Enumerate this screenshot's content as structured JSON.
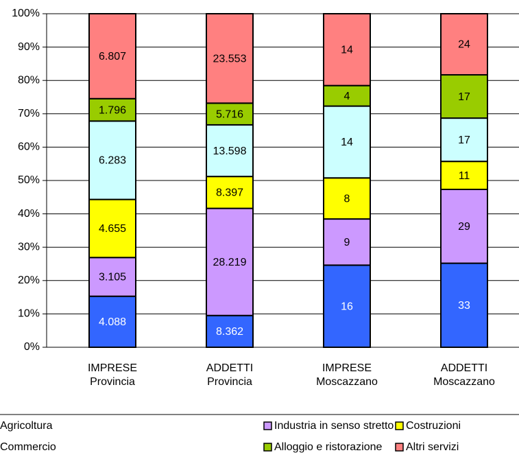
{
  "chart_data": {
    "type": "bar",
    "stacked_percent": true,
    "categories": [
      "IMPRESE Provincia",
      "ADDETTI Provincia",
      "IMPRESE Moscazzano",
      "ADDETTI Moscazzano"
    ],
    "series": [
      {
        "name": "Agricoltura",
        "color": "#3366ff",
        "values": [
          4088,
          8362,
          16,
          33
        ],
        "value_labels": [
          "4.088",
          "8.362",
          "16",
          "33"
        ]
      },
      {
        "name": "Industria in senso stretto",
        "color": "#cc99ff",
        "values": [
          3105,
          28219,
          9,
          29
        ],
        "value_labels": [
          "3.105",
          "28.219",
          "9",
          "29"
        ]
      },
      {
        "name": "Costruzioni",
        "color": "#ffff00",
        "values": [
          4655,
          8397,
          8,
          11
        ],
        "value_labels": [
          "4.655",
          "8.397",
          "8",
          "11"
        ]
      },
      {
        "name": "Commercio",
        "color": "#ccffff",
        "values": [
          6283,
          13598,
          14,
          17
        ],
        "value_labels": [
          "6.283",
          "13.598",
          "14",
          "17"
        ]
      },
      {
        "name": "Alloggio e ristorazione",
        "color": "#99cc00",
        "values": [
          1796,
          5716,
          4,
          17
        ],
        "value_labels": [
          "1.796",
          "5.716",
          "4",
          "17"
        ]
      },
      {
        "name": "Altri servizi",
        "color": "#ff8080",
        "values": [
          6807,
          23553,
          14,
          24
        ],
        "value_labels": [
          "6.807",
          "23.553",
          "14",
          "24"
        ]
      }
    ],
    "ylim": [
      0,
      100
    ],
    "yticks": [
      {
        "value": 0,
        "label": "0%"
      },
      {
        "value": 10,
        "label": "10%"
      },
      {
        "value": 20,
        "label": "20%"
      },
      {
        "value": 30,
        "label": "30%"
      },
      {
        "value": 40,
        "label": "40%"
      },
      {
        "value": 50,
        "label": "50%"
      },
      {
        "value": 60,
        "label": "60%"
      },
      {
        "value": 70,
        "label": "70%"
      },
      {
        "value": 80,
        "label": "80%"
      },
      {
        "value": 90,
        "label": "90%"
      },
      {
        "value": 100,
        "label": "100%"
      }
    ],
    "grid": true,
    "legend": "bottom"
  }
}
